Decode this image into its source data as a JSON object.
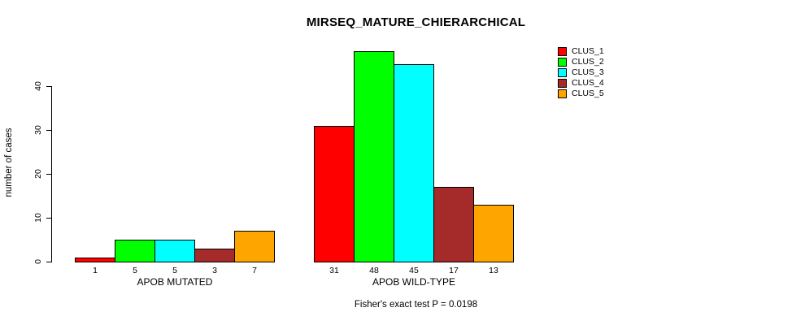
{
  "chart_data": {
    "type": "bar",
    "title": "MIRSEQ_MATURE_CHIERARCHICAL",
    "ylabel": "number of cases",
    "xlabel": "",
    "ylim": [
      0,
      48
    ],
    "yticks": [
      0,
      10,
      20,
      30,
      40
    ],
    "grid": false,
    "legend_position": "top-right-inside",
    "annotation": "Fisher's exact test P = 0.0198",
    "categories": [
      "APOB MUTATED",
      "APOB WILD-TYPE"
    ],
    "series": [
      {
        "name": "CLUS_1",
        "color": "#FF0000",
        "values": [
          1,
          31
        ]
      },
      {
        "name": "CLUS_2",
        "color": "#00FF00",
        "values": [
          5,
          48
        ]
      },
      {
        "name": "CLUS_3",
        "color": "#00FFFF",
        "values": [
          5,
          45
        ]
      },
      {
        "name": "CLUS_4",
        "color": "#A52A2A",
        "values": [
          3,
          17
        ]
      },
      {
        "name": "CLUS_5",
        "color": "#FFA500",
        "values": [
          7,
          13
        ]
      }
    ],
    "bar_value_labels_shown": true,
    "colors": {
      "background": "#FFFFFF",
      "axis": "#000000",
      "bar_border": "#000000",
      "text": "#000000"
    }
  }
}
